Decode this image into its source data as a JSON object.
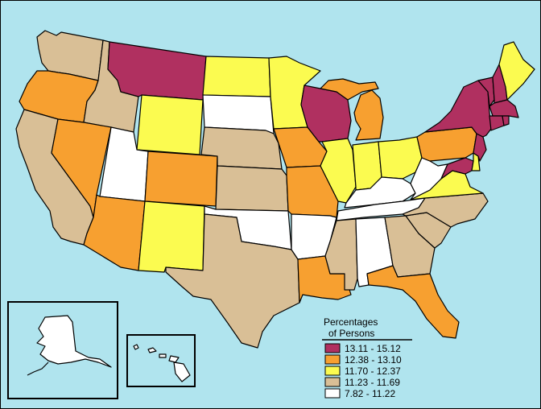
{
  "map": {
    "legend": {
      "title_line1": "Percentages",
      "title_line2": "of Persons",
      "classes": [
        {
          "label": "13.11 - 15.12",
          "color": "#b03060"
        },
        {
          "label": "12.38 - 13.10",
          "color": "#f7a030"
        },
        {
          "label": "11.70 - 12.37",
          "color": "#fbfb50"
        },
        {
          "label": "11.23 - 11.69",
          "color": "#d9bf96"
        },
        {
          "label": "7.82 - 11.22",
          "color": "#ffffff"
        }
      ]
    },
    "colors": {
      "ocean": "#b0e4ee",
      "class1": "#b03060",
      "class2": "#f7a030",
      "class3": "#fbfb50",
      "class4": "#d9bf96",
      "class5": "#ffffff"
    },
    "states": [
      {
        "name": "Washington",
        "class": 4
      },
      {
        "name": "Oregon",
        "class": 2
      },
      {
        "name": "California",
        "class": 4
      },
      {
        "name": "Idaho",
        "class": 4
      },
      {
        "name": "Nevada",
        "class": 2
      },
      {
        "name": "Montana",
        "class": 1
      },
      {
        "name": "Wyoming",
        "class": 3
      },
      {
        "name": "Utah",
        "class": 5
      },
      {
        "name": "Arizona",
        "class": 2
      },
      {
        "name": "Colorado",
        "class": 2
      },
      {
        "name": "New Mexico",
        "class": 3
      },
      {
        "name": "North Dakota",
        "class": 3
      },
      {
        "name": "South Dakota",
        "class": 5
      },
      {
        "name": "Nebraska",
        "class": 4
      },
      {
        "name": "Kansas",
        "class": 4
      },
      {
        "name": "Oklahoma",
        "class": 5
      },
      {
        "name": "Texas",
        "class": 4
      },
      {
        "name": "Minnesota",
        "class": 3
      },
      {
        "name": "Iowa",
        "class": 2
      },
      {
        "name": "Missouri",
        "class": 2
      },
      {
        "name": "Arkansas",
        "class": 5
      },
      {
        "name": "Louisiana",
        "class": 2
      },
      {
        "name": "Wisconsin",
        "class": 1
      },
      {
        "name": "Illinois",
        "class": 3
      },
      {
        "name": "Michigan",
        "class": 2
      },
      {
        "name": "Indiana",
        "class": 3
      },
      {
        "name": "Ohio",
        "class": 3
      },
      {
        "name": "Kentucky",
        "class": 5
      },
      {
        "name": "Tennessee",
        "class": 5
      },
      {
        "name": "Mississippi",
        "class": 4
      },
      {
        "name": "Alabama",
        "class": 5
      },
      {
        "name": "Georgia",
        "class": 4
      },
      {
        "name": "Florida",
        "class": 2
      },
      {
        "name": "South Carolina",
        "class": 4
      },
      {
        "name": "North Carolina",
        "class": 4
      },
      {
        "name": "Virginia",
        "class": 3
      },
      {
        "name": "West Virginia",
        "class": 5
      },
      {
        "name": "Maryland",
        "class": 1
      },
      {
        "name": "Delaware",
        "class": 3
      },
      {
        "name": "Pennsylvania",
        "class": 2
      },
      {
        "name": "New Jersey",
        "class": 1
      },
      {
        "name": "New York",
        "class": 1
      },
      {
        "name": "Connecticut",
        "class": 1
      },
      {
        "name": "Rhode Island",
        "class": 1
      },
      {
        "name": "Massachusetts",
        "class": 1
      },
      {
        "name": "Vermont",
        "class": 1
      },
      {
        "name": "New Hampshire",
        "class": 1
      },
      {
        "name": "Maine",
        "class": 3
      },
      {
        "name": "Alaska",
        "class": 5
      },
      {
        "name": "Hawaii",
        "class": 5
      }
    ]
  }
}
